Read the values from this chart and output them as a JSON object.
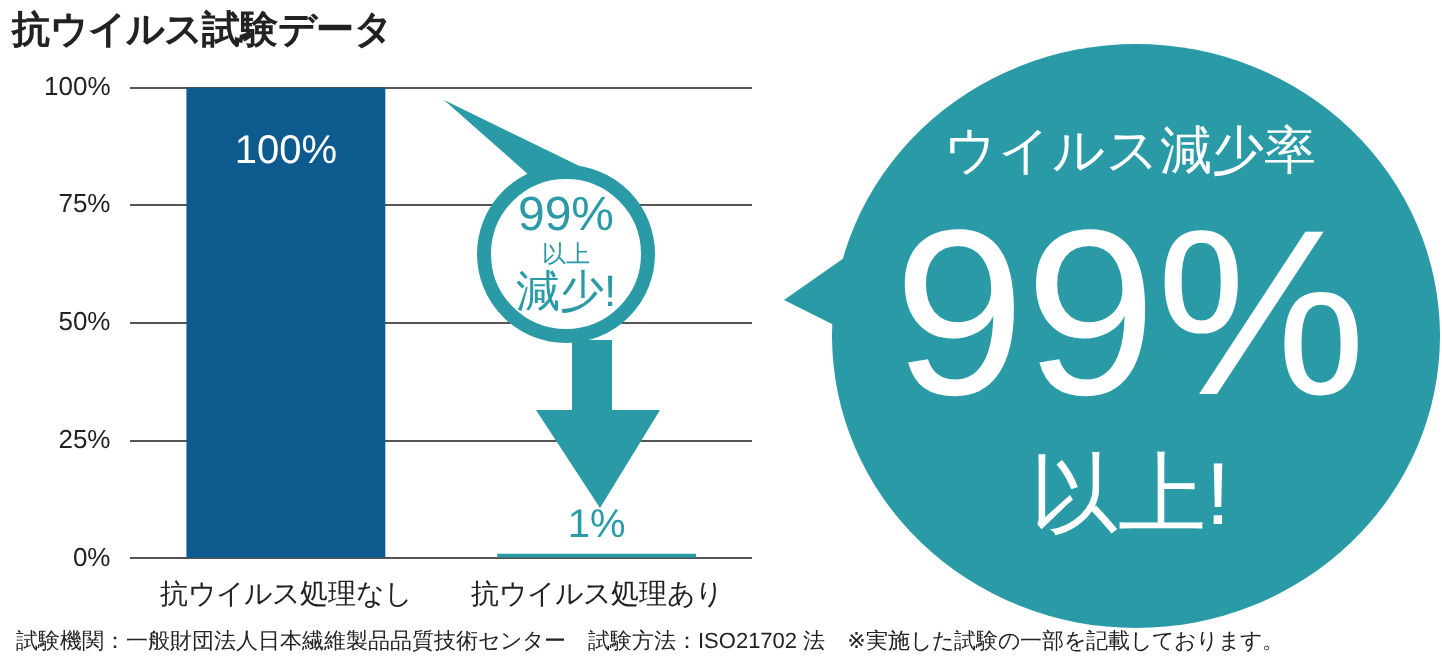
{
  "chart_data": {
    "type": "bar",
    "title": "抗ウイルス試験データ",
    "categories": [
      "抗ウイルス処理なし",
      "抗ウイルス処理あり"
    ],
    "values": [
      100,
      1
    ],
    "colors": [
      "#0d5a8e",
      "#2a9ca8"
    ],
    "value_labels": [
      "100%",
      "1%"
    ],
    "ylim": [
      0,
      100
    ],
    "yticks": [
      {
        "value": 0,
        "label": "0%"
      },
      {
        "value": 25,
        "label": "25%"
      },
      {
        "value": 50,
        "label": "50%"
      },
      {
        "value": 75,
        "label": "75%"
      },
      {
        "value": 100,
        "label": "100%"
      }
    ],
    "grid": "y",
    "legend": false,
    "annotations": [
      "99%",
      "以上",
      "減少!",
      "ウイルス減少率",
      "99%",
      "以上!",
      "試験機関：一般財団法人日本繊維製品品質技術センター　試験方法：ISO21702 法　※実施した試験の一部を記載しております。"
    ]
  }
}
